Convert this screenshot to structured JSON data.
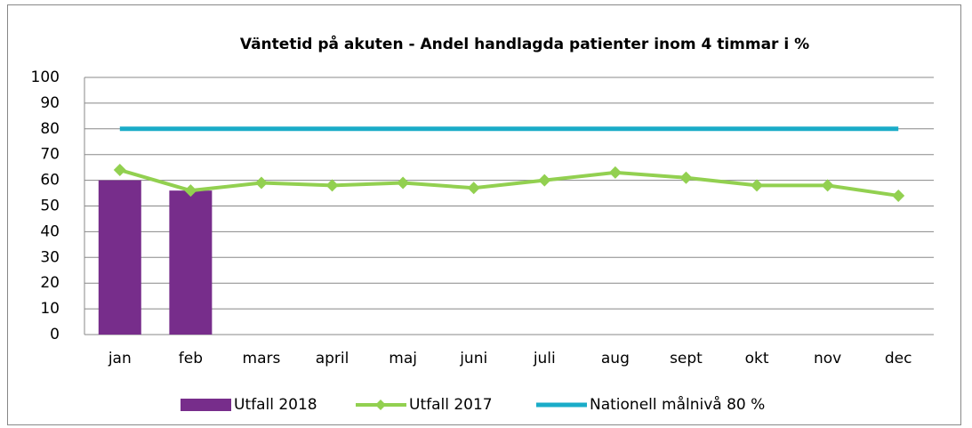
{
  "chart_data": {
    "type": "bar",
    "title": "Väntetid på akuten - Andel handlagda patienter inom 4 timmar i %",
    "categories": [
      "jan",
      "feb",
      "mars",
      "april",
      "maj",
      "juni",
      "juli",
      "aug",
      "sept",
      "okt",
      "nov",
      "dec"
    ],
    "series": [
      {
        "name": "Utfall 2018",
        "type": "bar",
        "color": "#772d8b",
        "values": [
          60,
          56,
          null,
          null,
          null,
          null,
          null,
          null,
          null,
          null,
          null,
          null
        ]
      },
      {
        "name": "Utfall 2017",
        "type": "line",
        "color": "#92d050",
        "values": [
          64,
          56,
          59,
          58,
          59,
          57,
          60,
          63,
          61,
          58,
          58,
          54
        ]
      },
      {
        "name": "Nationell målnivå 80 %",
        "type": "line",
        "color": "#1aacc8",
        "values": [
          80,
          80,
          80,
          80,
          80,
          80,
          80,
          80,
          80,
          80,
          80,
          80
        ]
      }
    ],
    "ylim": [
      0,
      100
    ],
    "yticks": [
      0,
      10,
      20,
      30,
      40,
      50,
      60,
      70,
      80,
      90,
      100
    ],
    "grid": true,
    "legend": "bottom"
  }
}
